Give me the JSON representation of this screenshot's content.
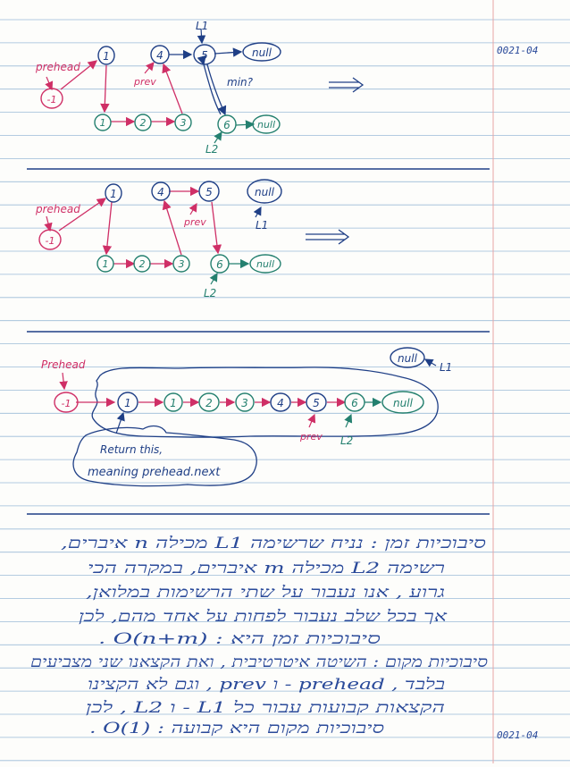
{
  "page": {
    "date_top": "0021-04",
    "date_bottom": "0021-04"
  },
  "colors": {
    "blue": "#1f3f86",
    "red": "#cf2f66",
    "green": "#24806f",
    "rule": "#9bbbd8",
    "margin": "#e6a5a5"
  },
  "diagram1": {
    "n_pre": "-1",
    "n_a": "1",
    "n_b": "4",
    "n_c": "5",
    "n_d": "1",
    "n_e": "2",
    "n_f": "3",
    "n_g": "6",
    "null1": "null",
    "null2": "null",
    "prehead": "prehead",
    "prev": "prev",
    "L1": "L1",
    "L2": "L2",
    "min": "min?"
  },
  "diagram2": {
    "n_pre": "-1",
    "n_a": "1",
    "n_b": "4",
    "n_c": "5",
    "n_d": "1",
    "n_e": "2",
    "n_f": "3",
    "n_g": "6",
    "null1": "null",
    "null2": "null",
    "prehead": "prehead",
    "prev": "prev",
    "L1": "L1",
    "L2": "L2"
  },
  "diagram3": {
    "n_pre": "-1",
    "chain": [
      "1",
      "1",
      "2",
      "3",
      "4",
      "5",
      "6"
    ],
    "null_end": "null",
    "null_top": "null",
    "prehead": "Prehead",
    "prev": "prev",
    "L1": "L1",
    "L2": "L2",
    "bubble_line1": "Return this,",
    "bubble_line2": "meaning prehead.next"
  },
  "notes": {
    "line1": "סיבוכיות זמן : נניח שרשימה L1 מכילה n איברים,",
    "line2": "רשימה L2 מכילה m איברים, במקרה הכי",
    "line3": "גרוע , אנו נעבור על שתי הרשימות במלואן,",
    "line4": "אך בכל שלב נעבור לפחות על אחד מהם, לכן",
    "line5": "סיבוכיות זמן היא : O(n+m) .",
    "line6": "סיבוכיות מקום : השיטה איטרטיבית , ואת הקצאנו שני מצביעים",
    "line7": "בלבד , prehead - ו prev , וגם לא הקצינו",
    "line8": "הקצאות קבועות עבור כל L1 - ו L2 , לכן",
    "line9": "סיבוכיות מקום היא קבועה : O(1) ."
  }
}
